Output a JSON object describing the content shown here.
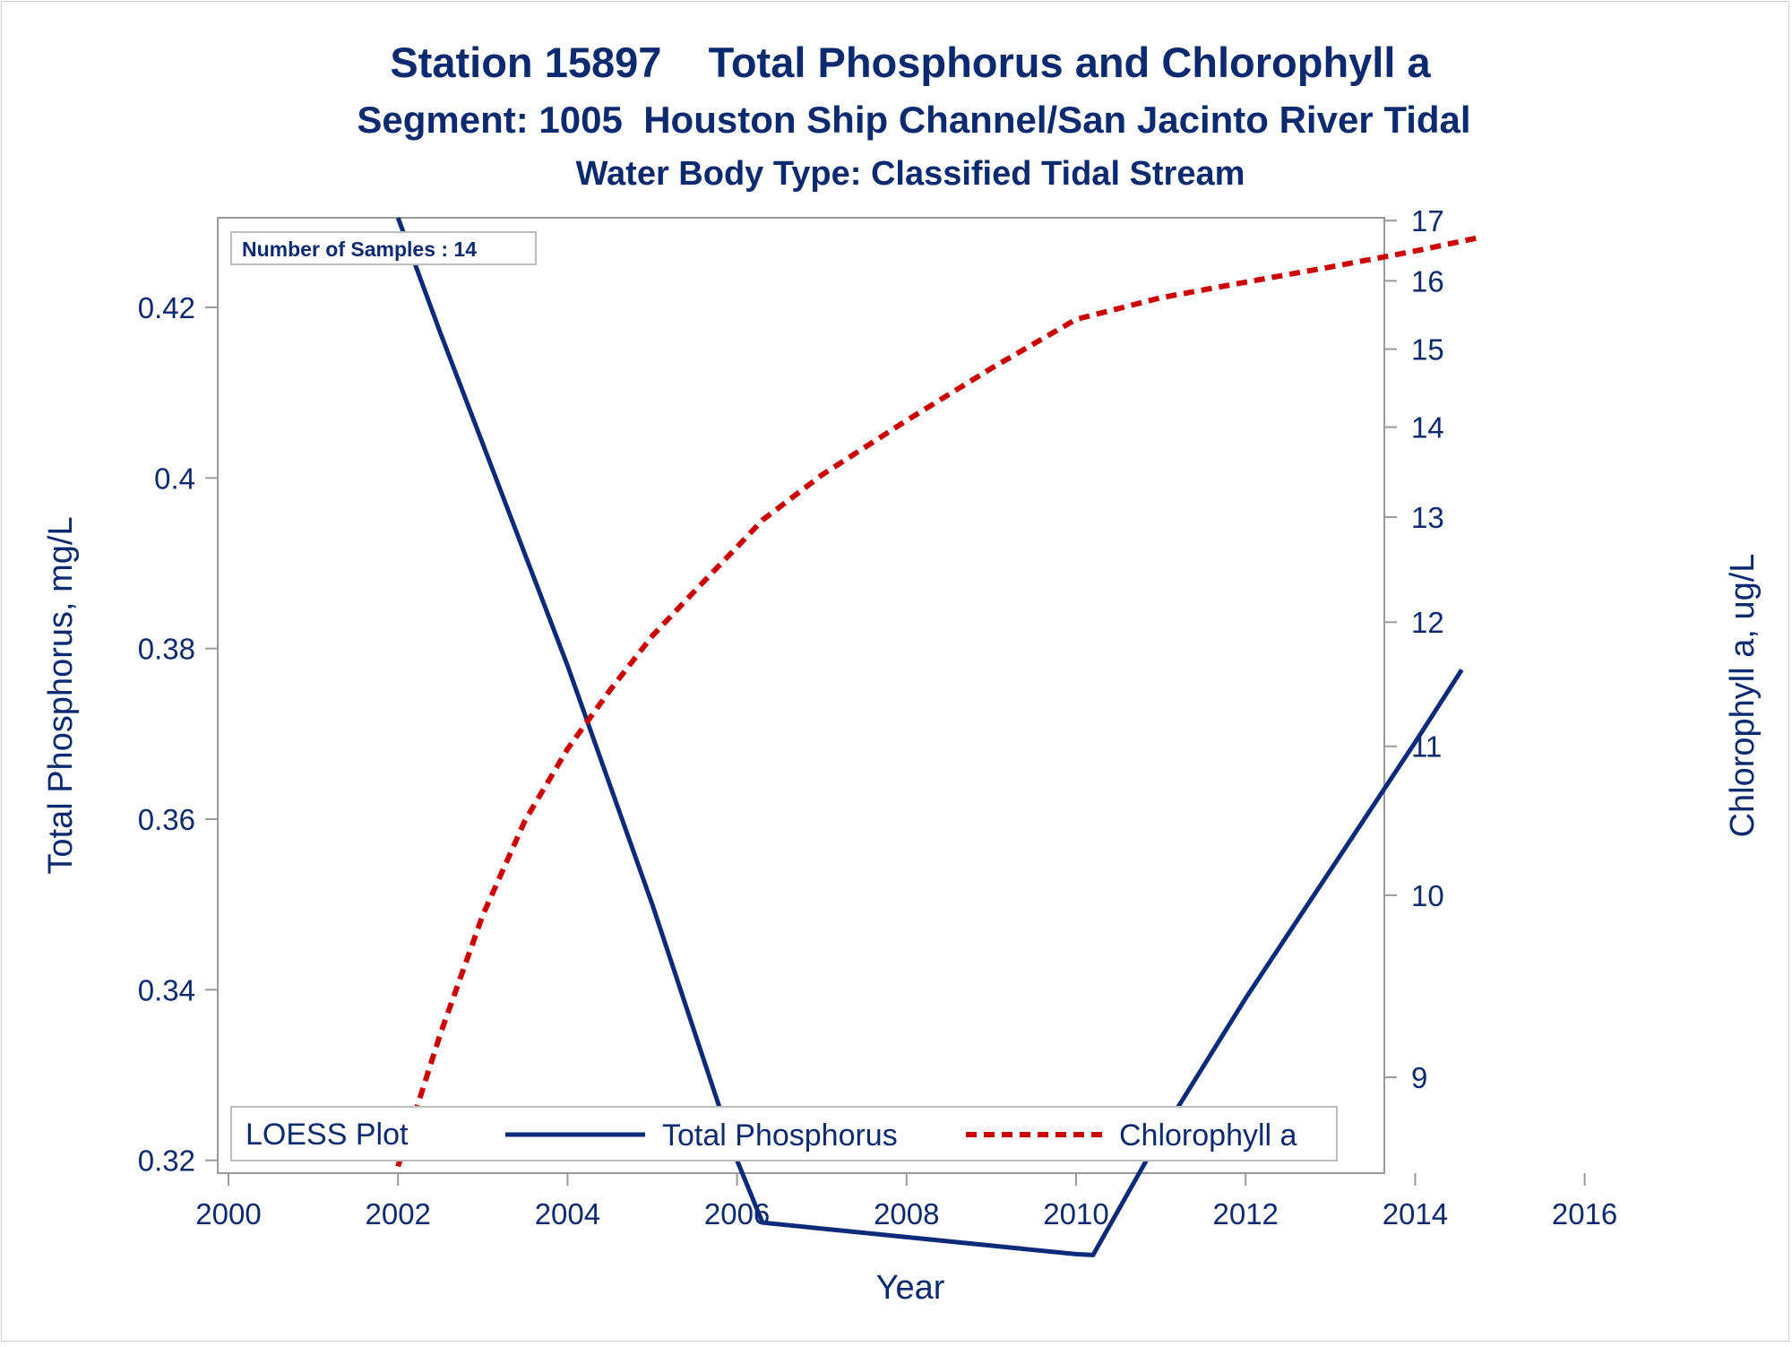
{
  "chart_data": {
    "type": "line",
    "title": "Station 15897    Total Phosphorus and Chlorophyll a",
    "subtitle": "Segment: 1005  Houston Ship Channel/San Jacinto River Tidal",
    "subtitle2": "Water Body Type: Classified Tidal Stream",
    "xlabel": "Year",
    "ylabel": "Total Phosphorus, mg/L",
    "y2label": "Chlorophyll a, ug/L",
    "xlim": [
      2000,
      2016
    ],
    "ylim": [
      0.3185,
      0.4305
    ],
    "y2lim": [
      8.55,
      17.05
    ],
    "xticks": [
      "2000",
      "2002",
      "2004",
      "2006",
      "2008",
      "2010",
      "2012",
      "2014",
      "2016"
    ],
    "yticks": [
      "0.32",
      "0.34",
      "0.36",
      "0.38",
      "0.4",
      "0.42"
    ],
    "y2ticks": [
      "9",
      "10",
      "11",
      "12",
      "13",
      "14",
      "15",
      "16",
      "17"
    ],
    "y2_scale": "reciprocal",
    "grid": false,
    "legend_position": "bottom-inside",
    "legend_title": "LOESS Plot",
    "inset_text": "Number of Samples : 14",
    "series": [
      {
        "name": "Total Phosphorus",
        "axis": "y",
        "color": "#0b2a7a",
        "style": "solid",
        "x": [
          2002.0,
          2002.5,
          2003.0,
          2003.5,
          2004.0,
          2004.5,
          2005.0,
          2005.5,
          2006.0,
          2006.3,
          2007.0,
          2008.0,
          2009.0,
          2010.0,
          2010.2,
          2011.0,
          2012.0,
          2013.0,
          2014.0,
          2014.55
        ],
        "values": [
          0.4305,
          0.417,
          0.404,
          0.391,
          0.378,
          0.364,
          0.35,
          0.335,
          0.32,
          0.3127,
          0.312,
          0.311,
          0.31,
          0.309,
          0.3089,
          0.323,
          0.339,
          0.354,
          0.369,
          0.3775
        ]
      },
      {
        "name": "Chlorophyll a",
        "axis": "y2",
        "color": "#cc0000",
        "style": "dashed",
        "x": [
          2002.0,
          2002.5,
          2003.0,
          2003.5,
          2004.0,
          2004.5,
          2005.0,
          2005.5,
          2006.0,
          2006.3,
          2007.0,
          2008.0,
          2009.0,
          2010.0,
          2011.0,
          2012.0,
          2013.0,
          2014.0,
          2014.8
        ],
        "values": [
          8.58,
          9.22,
          9.88,
          10.48,
          10.98,
          11.43,
          11.88,
          12.28,
          12.7,
          12.97,
          13.45,
          14.08,
          14.74,
          15.42,
          15.74,
          15.98,
          16.22,
          16.48,
          16.72
        ]
      }
    ]
  }
}
